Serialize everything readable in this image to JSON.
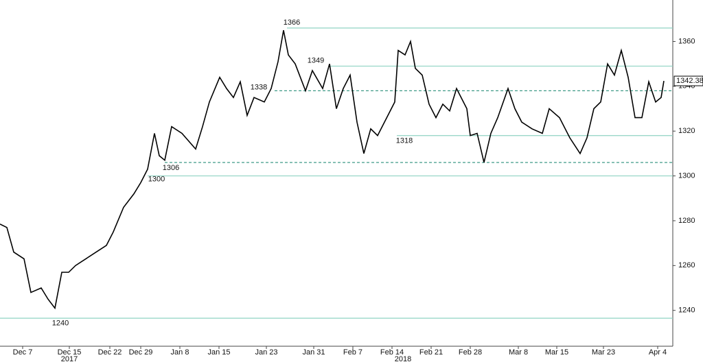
{
  "chart_data": {
    "type": "line",
    "x": [
      0,
      10,
      20,
      35,
      45,
      60,
      70,
      80,
      90,
      100,
      110,
      125,
      140,
      155,
      165,
      180,
      195,
      205,
      215,
      225,
      232,
      240,
      250,
      265,
      285,
      295,
      305,
      320,
      330,
      340,
      350,
      360,
      370,
      385,
      395,
      405,
      413,
      420,
      430,
      445,
      455,
      470,
      480,
      490,
      500,
      510,
      520,
      530,
      540,
      550,
      565,
      575,
      580,
      590,
      598,
      605,
      615,
      625,
      635,
      645,
      655,
      665,
      680,
      685,
      695,
      705,
      715,
      725,
      740,
      750,
      760,
      775,
      790,
      800,
      815,
      830,
      845,
      855,
      865,
      875,
      885,
      895,
      905,
      915,
      925,
      935,
      945,
      955,
      963,
      967
    ],
    "series": [
      {
        "color": "#000000",
        "values": [
          1278.5,
          1277,
          1266,
          1263,
          1248,
          1250,
          1245,
          1241,
          1257,
          1257,
          1260,
          1263,
          1266,
          1269,
          1275,
          1286,
          1292,
          1297,
          1303,
          1319,
          1309,
          1307,
          1322,
          1319,
          1312,
          1322,
          1333,
          1344,
          1339,
          1335,
          1342,
          1327,
          1335,
          1333,
          1339,
          1351,
          1365,
          1354,
          1350,
          1338,
          1347,
          1339,
          1350,
          1330,
          1339,
          1345,
          1324,
          1310,
          1321,
          1318,
          1327,
          1333,
          1356,
          1354,
          1360,
          1348,
          1345,
          1332,
          1326,
          1332,
          1329,
          1339,
          1330,
          1318,
          1319,
          1306,
          1319,
          1326,
          1339,
          1330,
          1324,
          1321,
          1319,
          1330,
          1326,
          1317,
          1310,
          1317,
          1330,
          1333,
          1350,
          1345,
          1356,
          1344,
          1326,
          1326,
          1342,
          1333,
          1335,
          1342.38
        ]
      }
    ],
    "xlim": [
      0,
      980
    ],
    "xticks": [
      {
        "value": 33,
        "label": "Dec 7"
      },
      {
        "value": 101,
        "label": "Dec 15"
      },
      {
        "value": 160,
        "label": "Dec 22"
      },
      {
        "value": 205,
        "label": "Dec 29"
      },
      {
        "value": 262,
        "label": "Jan 8"
      },
      {
        "value": 319,
        "label": "Jan 15"
      },
      {
        "value": 388,
        "label": "Jan 23"
      },
      {
        "value": 457,
        "label": "Jan 31"
      },
      {
        "value": 514,
        "label": "Feb 7"
      },
      {
        "value": 571,
        "label": "Feb 14"
      },
      {
        "value": 628,
        "label": "Feb 21"
      },
      {
        "value": 685,
        "label": "Feb 28"
      },
      {
        "value": 755,
        "label": "Mar 8"
      },
      {
        "value": 811,
        "label": "Mar 15"
      },
      {
        "value": 879,
        "label": "Mar 23"
      },
      {
        "value": 958,
        "label": "Apr 4"
      }
    ],
    "year_labels": [
      {
        "value": 101,
        "label": "2017"
      },
      {
        "value": 587,
        "label": "2018"
      }
    ],
    "ylim": [
      1224,
      1378.5
    ],
    "yticks": [
      1240,
      1260,
      1280,
      1300,
      1320,
      1340,
      1360
    ],
    "levels": [
      {
        "value": 1366,
        "label": "1366"
      },
      {
        "value": 1349,
        "label": "1349"
      },
      {
        "value": 1338,
        "label": "1338",
        "style": "dashed"
      },
      {
        "value": 1318,
        "label": "1318"
      },
      {
        "value": 1306,
        "label": "1306",
        "style": "dashed"
      },
      {
        "value": 1300,
        "label": "1300"
      },
      {
        "value": 1236.5
      }
    ],
    "annotations": [
      {
        "value": 1240,
        "label": "1240"
      }
    ],
    "level_color": "#8fd3c3",
    "last_value": 1342.38
  }
}
